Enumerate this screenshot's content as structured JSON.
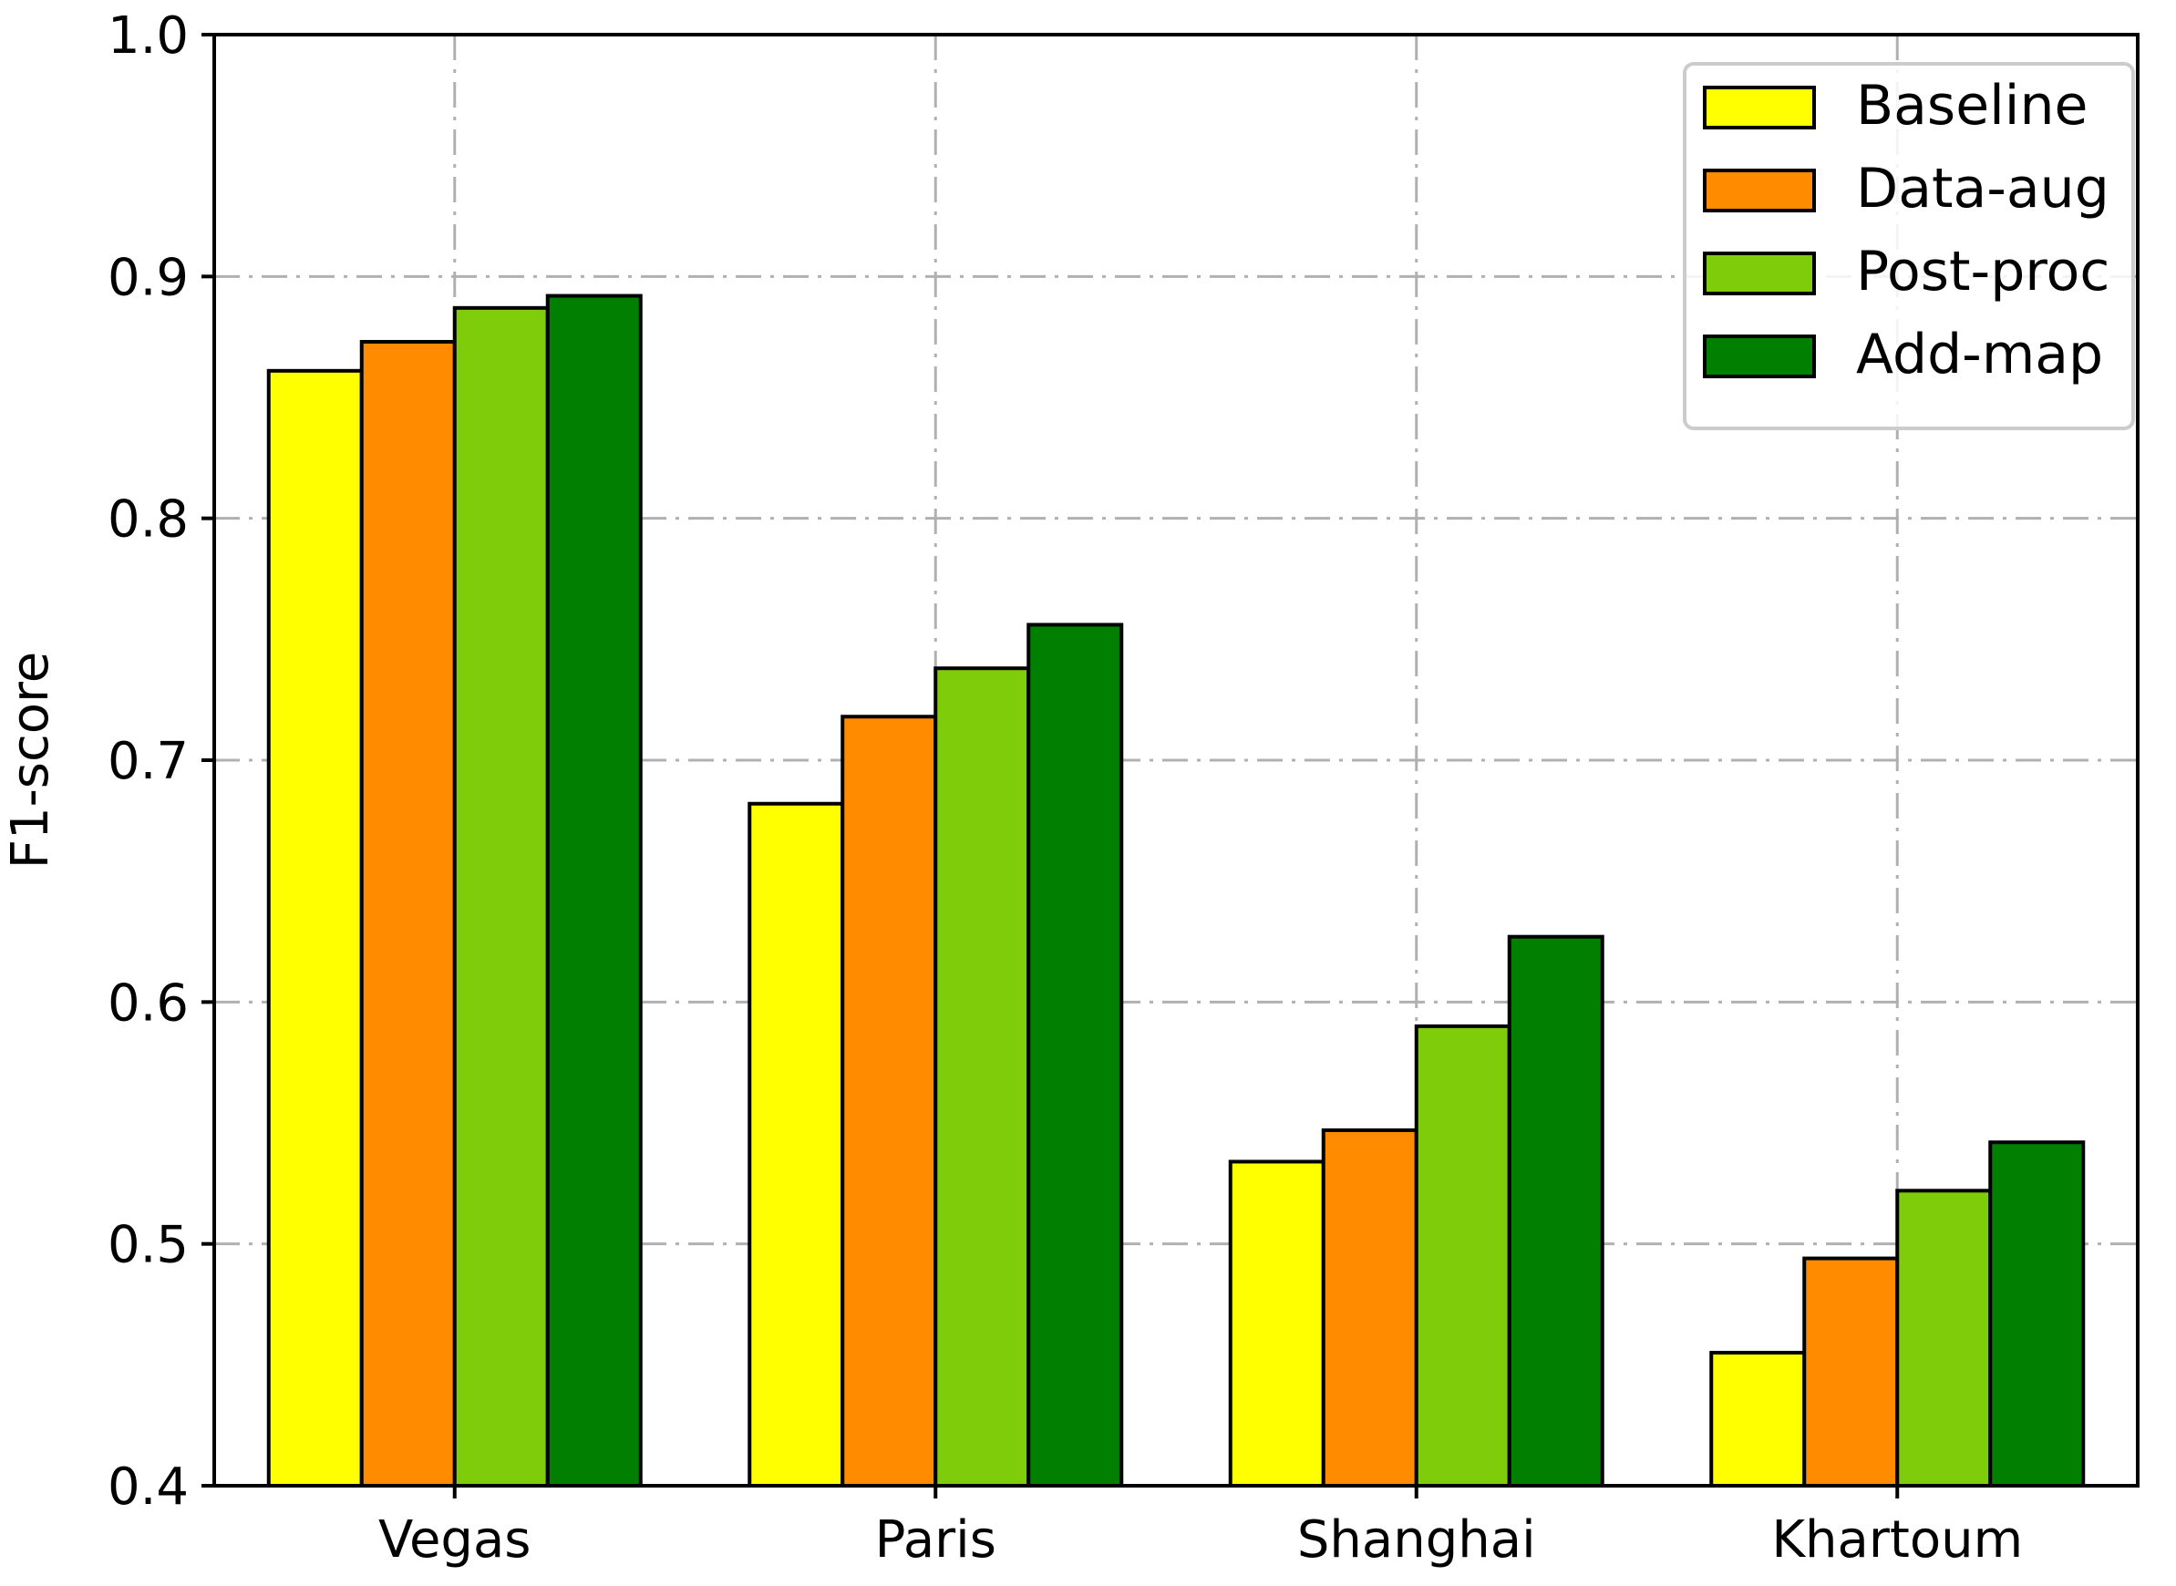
{
  "chart_data": {
    "type": "bar",
    "title": "",
    "xlabel": "",
    "ylabel": "F1-score",
    "categories": [
      "Vegas",
      "Paris",
      "Shanghai",
      "Khartoum"
    ],
    "series": [
      {
        "name": "Baseline",
        "color": "#ffff00",
        "values": [
          0.861,
          0.682,
          0.534,
          0.455
        ]
      },
      {
        "name": "Data-aug",
        "color": "#ff8c00",
        "values": [
          0.873,
          0.718,
          0.547,
          0.494
        ]
      },
      {
        "name": "Post-proc",
        "color": "#7fcc0a",
        "values": [
          0.887,
          0.738,
          0.59,
          0.522
        ]
      },
      {
        "name": "Add-map",
        "color": "#007f00",
        "values": [
          0.892,
          0.756,
          0.627,
          0.542
        ]
      }
    ],
    "ylim": [
      0.4,
      1.0
    ],
    "yticks": [
      "0.4",
      "0.5",
      "0.6",
      "0.7",
      "0.8",
      "0.9",
      "1.0"
    ],
    "grid": true,
    "legend_position": "top-right"
  }
}
